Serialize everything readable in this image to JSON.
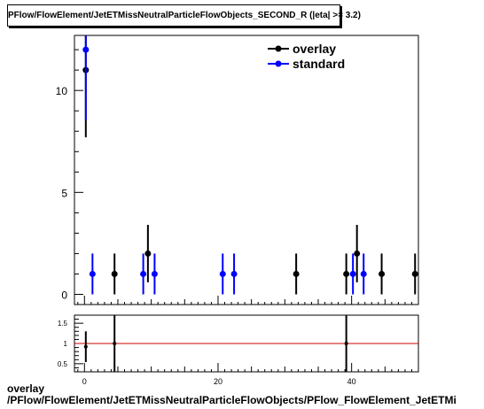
{
  "title": "PFlow/FlowElement/JetETMissNeutralParticleFlowObjects_SECOND_R (|eta| >= 3.2)",
  "xlabel_line1": "overlay",
  "xlabel_line2": "/PFlow/FlowElement/JetETMissNeutralParticleFlowObjects/PFlow_FlowElement_JetETMi",
  "colors": {
    "overlay": "#000000",
    "standard": "#0000ff",
    "ratio_line": "#cc0000"
  },
  "chart_data": [
    {
      "type": "scatter",
      "title": "PFlow/FlowElement/JetETMissNeutralParticleFlowObjects_SECOND_R (|eta| >= 3.2)",
      "xlim": [
        -1.5,
        50
      ],
      "ylim": [
        -0.5,
        12.7
      ],
      "xticks": [
        0,
        20,
        40
      ],
      "yticks": [
        0,
        5,
        10
      ],
      "legend_position": "top-right",
      "series": [
        {
          "name": "overlay",
          "color": "#000000",
          "points": [
            {
              "x": 0.2,
              "y": 11,
              "err": 3.3
            },
            {
              "x": 4.5,
              "y": 1,
              "err": 1
            },
            {
              "x": 9.5,
              "y": 2,
              "err": 1.41
            },
            {
              "x": 31.7,
              "y": 1,
              "err": 1
            },
            {
              "x": 39.2,
              "y": 1,
              "err": 1
            },
            {
              "x": 40.8,
              "y": 2,
              "err": 1.41
            },
            {
              "x": 44.5,
              "y": 1,
              "err": 1
            },
            {
              "x": 49.5,
              "y": 1,
              "err": 1
            }
          ]
        },
        {
          "name": "standard",
          "color": "#0000ff",
          "points": [
            {
              "x": 0.2,
              "y": 12,
              "err": 3.46
            },
            {
              "x": 1.2,
              "y": 1,
              "err": 1
            },
            {
              "x": 8.8,
              "y": 1,
              "err": 1
            },
            {
              "x": 10.5,
              "y": 1,
              "err": 1
            },
            {
              "x": 20.7,
              "y": 1,
              "err": 1
            },
            {
              "x": 22.4,
              "y": 1,
              "err": 1
            },
            {
              "x": 40.2,
              "y": 1,
              "err": 1
            },
            {
              "x": 41.8,
              "y": 1,
              "err": 1
            }
          ]
        }
      ]
    },
    {
      "type": "scatter",
      "xlim": [
        -1.5,
        50
      ],
      "ylim": [
        0.3,
        1.7
      ],
      "xticks": [
        0,
        20,
        40
      ],
      "yticks": [
        0.5,
        1,
        1.5
      ],
      "reference_line": 1,
      "series": [
        {
          "name": "",
          "color": "#000000",
          "points": [
            {
              "x": 0.2,
              "y": 0.92,
              "err": 0.38
            },
            {
              "x": 4.5,
              "y": 1,
              "err": 1.41
            },
            {
              "x": 39.2,
              "y": 1,
              "err": 1.41
            }
          ]
        }
      ]
    }
  ]
}
